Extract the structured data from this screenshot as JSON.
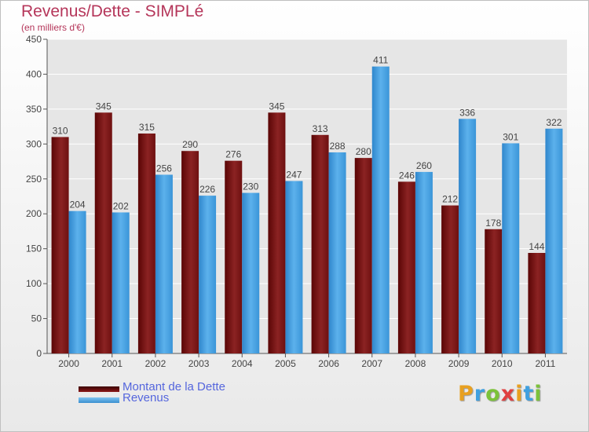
{
  "chart_data": {
    "type": "bar",
    "title": "Revenus/Dette - SIMPLé",
    "subtitle": "(en milliers d'€)",
    "categories": [
      "2000",
      "2001",
      "2002",
      "2003",
      "2004",
      "2005",
      "2006",
      "2007",
      "2008",
      "2009",
      "2010",
      "2011"
    ],
    "series": [
      {
        "name": "Montant de la Dette",
        "color": "#8b1a1a",
        "values": [
          310,
          345,
          315,
          290,
          276,
          345,
          313,
          280,
          246,
          212,
          178,
          144
        ]
      },
      {
        "name": "Revenus",
        "color": "#4ea6e6",
        "values": [
          204,
          202,
          256,
          226,
          230,
          247,
          288,
          411,
          260,
          336,
          301,
          322
        ]
      }
    ],
    "yticks": [
      0,
      50,
      100,
      150,
      200,
      250,
      300,
      350,
      400,
      450
    ],
    "ylim": [
      0,
      450
    ],
    "grid": true,
    "legend_position": "bottom-left"
  },
  "logo": {
    "letters": [
      "P",
      "r",
      "o",
      "x",
      "i",
      "t",
      "i"
    ],
    "colors": [
      "#e8a020",
      "#3fa0e0",
      "#7cc23a",
      "#e04040",
      "#e8a020",
      "#3fa0e0",
      "#7cc23a"
    ]
  }
}
